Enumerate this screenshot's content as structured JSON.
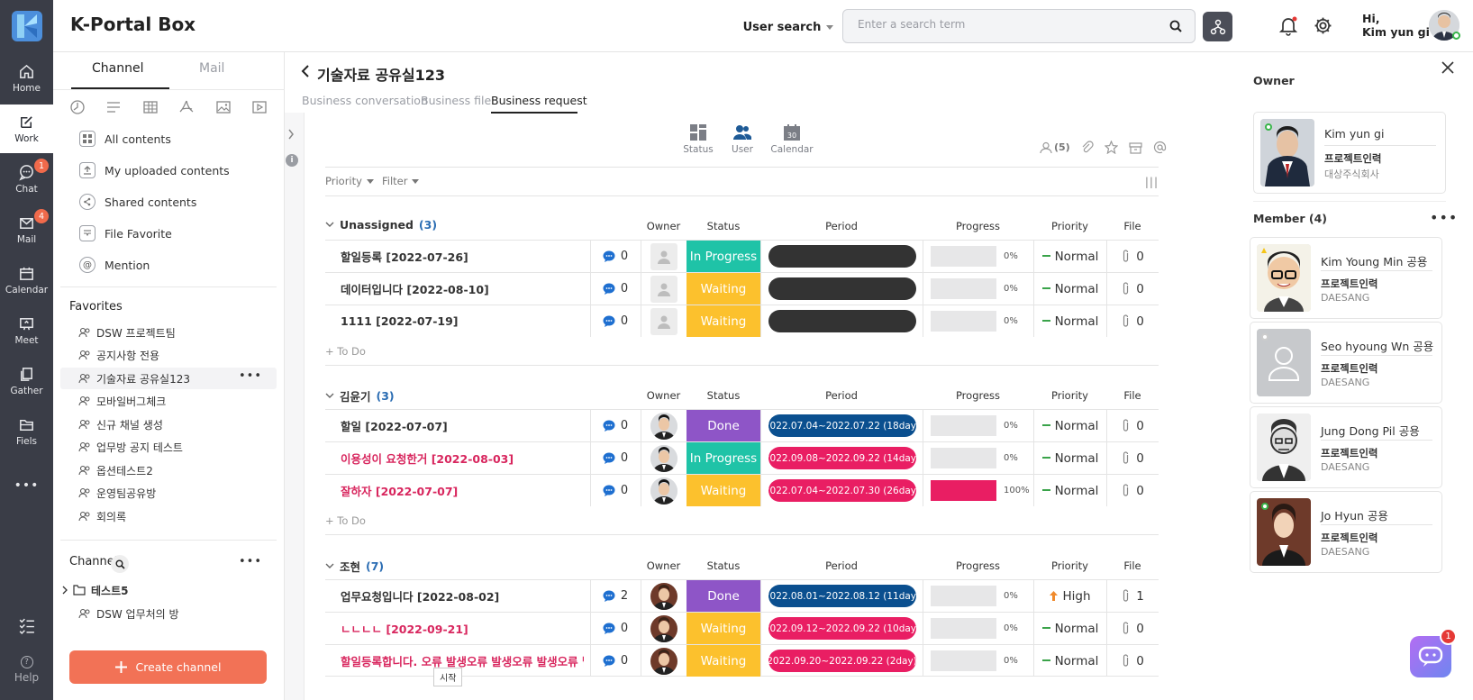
{
  "app": {
    "title": "K-Portal Box"
  },
  "nav": {
    "items": [
      {
        "label": "Home",
        "icon": "home-icon"
      },
      {
        "label": "Work",
        "icon": "edit-icon"
      },
      {
        "label": "Chat",
        "icon": "chat-icon",
        "badge": "1"
      },
      {
        "label": "Mail",
        "icon": "mail-icon",
        "badge": "4"
      },
      {
        "label": "Calendar",
        "icon": "calendar-icon"
      },
      {
        "label": "Meet",
        "icon": "meet-icon"
      },
      {
        "label": "Gather",
        "icon": "gather-icon"
      },
      {
        "label": "Fiels",
        "icon": "folder-icon"
      }
    ],
    "more": "•••",
    "help": "Help",
    "help_icon": "?"
  },
  "header": {
    "search_type": "User search",
    "search_placeholder": "Enter a search term",
    "greeting_line1": "Hi,",
    "greeting_line2": "Kim yun gi"
  },
  "left": {
    "tabs": [
      "Channel",
      "Mail"
    ],
    "menu": [
      {
        "label": "All contents",
        "icon": "grid-icon"
      },
      {
        "label": "My uploaded contents",
        "icon": "upload-icon"
      },
      {
        "label": "Shared contents",
        "icon": "share-icon"
      },
      {
        "label": "File Favorite",
        "icon": "file-favorite-icon"
      },
      {
        "label": "Mention",
        "icon": "at-icon"
      }
    ],
    "favorites_title": "Favorites",
    "favorites": [
      "DSW 프로젝트팀",
      "공지사항 전용",
      "기술자료 공유실123",
      "모바일버그체크",
      "신규 채널 생성",
      "업무방 공지 테스트",
      "옵션테스트2",
      "운영팀공유방",
      "회의록"
    ],
    "favorite_more": "•••",
    "channel_title": "Channel",
    "channel_more": "•••",
    "channels": [
      "테스트5",
      "DSW 업무처의 방"
    ],
    "create_button": "Create channel"
  },
  "main": {
    "title": "기술자료 공유실123",
    "tabs": [
      "Business conversation",
      "Business file",
      "Business request"
    ],
    "views": [
      "Status",
      "User",
      "Calendar"
    ],
    "calendar_day": "30",
    "member_count": "(5)",
    "filters": {
      "priority": "Priority",
      "filter": "Filter"
    },
    "columns": {
      "owner": "Owner",
      "status": "Status",
      "period": "Period",
      "progress": "Progress",
      "priority": "Priority",
      "file": "File"
    },
    "todo_label": "+ To Do",
    "groups": [
      {
        "name": "Unassigned",
        "count": "(3)",
        "rows": [
          {
            "title": "할일등록 [2022-07-26]",
            "red": false,
            "comments": "0",
            "owner": "none",
            "status": "In Progress",
            "period": "",
            "progress": 0,
            "progress_label": "0%",
            "priority": "Normal",
            "files": "0"
          },
          {
            "title": "데이터입니다 [2022-08-10]",
            "red": false,
            "comments": "0",
            "owner": "none",
            "status": "Waiting",
            "period": "",
            "progress": 0,
            "progress_label": "0%",
            "priority": "Normal",
            "files": "0"
          },
          {
            "title": "1111 [2022-07-19]",
            "red": false,
            "comments": "0",
            "owner": "none",
            "status": "Waiting",
            "period": "",
            "progress": 0,
            "progress_label": "0%",
            "priority": "Normal",
            "files": "0"
          }
        ]
      },
      {
        "name": "김윤기",
        "count": "(3)",
        "rows": [
          {
            "title": "할일 [2022-07-07]",
            "red": false,
            "comments": "0",
            "owner": "user",
            "status": "Done",
            "period": "2022.07.04~2022.07.22 (18day)",
            "period_color": "blue",
            "progress": 0,
            "progress_label": "0%",
            "priority": "Normal",
            "files": "0"
          },
          {
            "title": "이용성이 요청한거 [2022-08-03]",
            "red": true,
            "comments": "0",
            "owner": "user",
            "status": "In Progress",
            "period": "2022.09.08~2022.09.22 (14day)",
            "period_color": "pink",
            "progress": 0,
            "progress_label": "0%",
            "priority": "Normal",
            "files": "0"
          },
          {
            "title": "잘하자 [2022-07-07]",
            "red": true,
            "comments": "0",
            "owner": "user",
            "status": "Waiting",
            "period": "2022.07.04~2022.07.30 (26day)",
            "period_color": "pink",
            "progress": 100,
            "progress_label": "100%",
            "priority": "Normal",
            "files": "0"
          }
        ]
      },
      {
        "name": "조현",
        "count": "(7)",
        "rows": [
          {
            "title": "업무요청입니다 [2022-08-02]",
            "red": false,
            "comments": "2",
            "owner": "user2",
            "status": "Done",
            "period": "2022.08.01~2022.08.12 (11day)",
            "period_color": "blue",
            "progress": 0,
            "progress_label": "0%",
            "priority": "High",
            "files": "1"
          },
          {
            "title": "ㄴㄴㄴㄴ [2022-09-21]",
            "red": true,
            "comments": "0",
            "owner": "user2",
            "status": "Waiting",
            "period": "2022.09.12~2022.09.22 (10day)",
            "period_color": "pink",
            "progress": 0,
            "progress_label": "0%",
            "priority": "Normal",
            "files": "0"
          },
          {
            "title": "할일등록합니다. 오류 발생오류 발생오류 발생오류 발...",
            "red": true,
            "comments": "0",
            "owner": "user2",
            "status": "Waiting",
            "period": "2022.09.20~2022.09.22 (2day)",
            "period_color": "pink",
            "progress": 0,
            "progress_label": "0%",
            "priority": "Normal",
            "files": "0"
          }
        ]
      }
    ],
    "tooltip": "시작"
  },
  "right": {
    "owner_title": "Owner",
    "owner": {
      "name": "Kim yun gi",
      "dept": "프로젝트인력",
      "company": "대상주식회사"
    },
    "member_title": "Member (4)",
    "member_more": "•••",
    "members": [
      {
        "name": "Kim Young Min 공용",
        "dept": "프로젝트인력",
        "company": "DAESANG"
      },
      {
        "name": "Seo hyoung Wn 공용",
        "dept": "프로젝트인력",
        "company": "DAESANG"
      },
      {
        "name": "Jung Dong Pil 공용",
        "dept": "프로젝트인력",
        "company": "DAESANG"
      },
      {
        "name": "Jo Hyun 공용",
        "dept": "프로젝트인력",
        "company": "DAESANG"
      }
    ]
  },
  "chatbot": {
    "badge": "1"
  },
  "colors": {
    "nav_bg": "#3a3d47",
    "accent": "#f27256",
    "in_progress": "#1fc3a7",
    "waiting": "#fcc12d",
    "done": "#8e55c7",
    "period_blue": "#0a4f8f",
    "period_pink": "#e91e63",
    "empty_pill": "#333333"
  }
}
